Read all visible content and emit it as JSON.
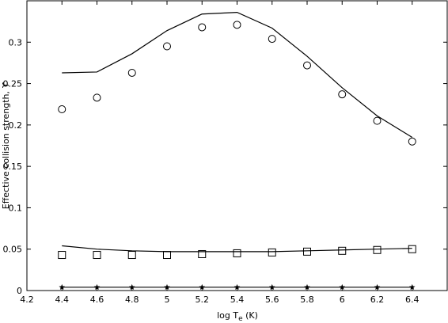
{
  "chart_data": {
    "type": "line",
    "xlabel": "log T_e (K)",
    "ylabel": "Effective collision strength, ϒ",
    "xlim": [
      4.2,
      6.6
    ],
    "ylim": [
      0,
      0.35
    ],
    "xticks": [
      4.2,
      4.4,
      4.6,
      4.8,
      5,
      5.2,
      5.4,
      5.6,
      5.8,
      6,
      6.2,
      6.4
    ],
    "xtick_labels": [
      "4.2",
      "4.4",
      "4.6",
      "4.8",
      "5",
      "5.2",
      "5.4",
      "5.6",
      "5.8",
      "6",
      "6.2",
      "6.4"
    ],
    "yticks": [
      0,
      0.05,
      0.1,
      0.15,
      0.2,
      0.25,
      0.3
    ],
    "ytick_labels": [
      "0",
      "0.05",
      "0.1",
      "0.15",
      "0.2",
      "0.25",
      "0.3"
    ],
    "grid": false,
    "x": [
      4.4,
      4.6,
      4.8,
      5.0,
      5.2,
      5.4,
      5.6,
      5.8,
      6.0,
      6.2,
      6.4
    ],
    "series": [
      {
        "style": "line",
        "marker": "none",
        "values": [
          0.263,
          0.264,
          0.286,
          0.314,
          0.334,
          0.336,
          0.317,
          0.283,
          0.245,
          0.211,
          0.185
        ]
      },
      {
        "style": "markers",
        "marker": "circle",
        "values": [
          0.219,
          0.233,
          0.263,
          0.295,
          0.318,
          0.321,
          0.304,
          0.272,
          0.237,
          0.205,
          0.18
        ]
      },
      {
        "style": "line",
        "marker": "none",
        "values": [
          0.054,
          0.05,
          0.048,
          0.047,
          0.047,
          0.047,
          0.047,
          0.048,
          0.049,
          0.05,
          0.051
        ]
      },
      {
        "style": "markers",
        "marker": "square",
        "values": [
          0.043,
          0.043,
          0.043,
          0.043,
          0.044,
          0.045,
          0.046,
          0.047,
          0.048,
          0.049,
          0.05
        ]
      },
      {
        "style": "line+markers",
        "marker": "star",
        "values": [
          0.004,
          0.004,
          0.004,
          0.004,
          0.004,
          0.004,
          0.004,
          0.004,
          0.004,
          0.004,
          0.004
        ]
      }
    ]
  }
}
